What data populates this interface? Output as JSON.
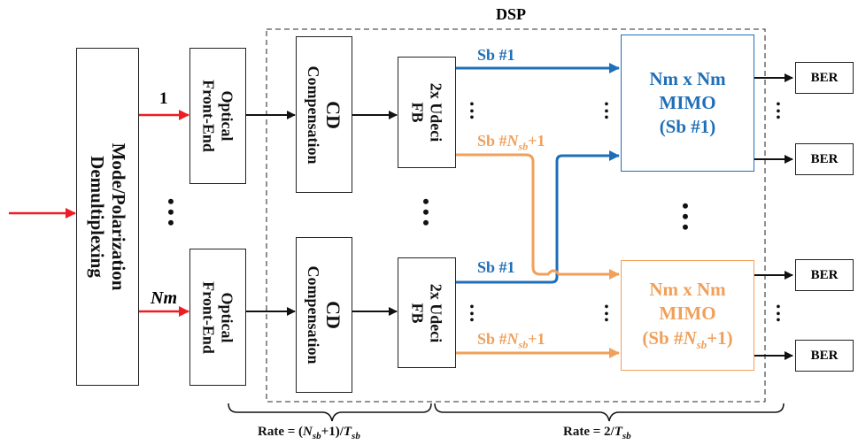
{
  "title": "DSP",
  "demux": {
    "line1": "Mode/Polarization",
    "line2": "Demultiplexing"
  },
  "inputs": {
    "first": "1",
    "last": "Nm"
  },
  "frontend": {
    "line1": "Optical",
    "line2": "Front-End"
  },
  "cd": {
    "line1": "CD",
    "line2": "Compensation"
  },
  "fb": {
    "line1": "2x Udeci",
    "line2": "FB"
  },
  "subbands": {
    "first": "Sb #1",
    "last_prefix": "Sb #",
    "last_var": "N",
    "last_sub": "sb",
    "last_suffix": "+1"
  },
  "mimo_top": {
    "line1": "Nm x Nm",
    "line2": "MIMO",
    "line3": "(Sb #1)"
  },
  "mimo_bottom": {
    "line1": "Nm x Nm",
    "line2": "MIMO",
    "line3_prefix": "(Sb #",
    "line3_var": "N",
    "line3_sub": "sb",
    "line3_suffix": "+1)"
  },
  "ber": "BER",
  "rate_left": {
    "prefix": "Rate = (",
    "var": "N",
    "sub": "sb",
    "mid": "+1)/",
    "tvar": "T",
    "tsub": "sb"
  },
  "rate_right": {
    "prefix": "Rate = 2/",
    "tvar": "T",
    "tsub": "sb"
  },
  "colors": {
    "blue": "#1f6fb8",
    "orange": "#f0a05a",
    "red": "#ee1c24",
    "black": "#111111"
  }
}
